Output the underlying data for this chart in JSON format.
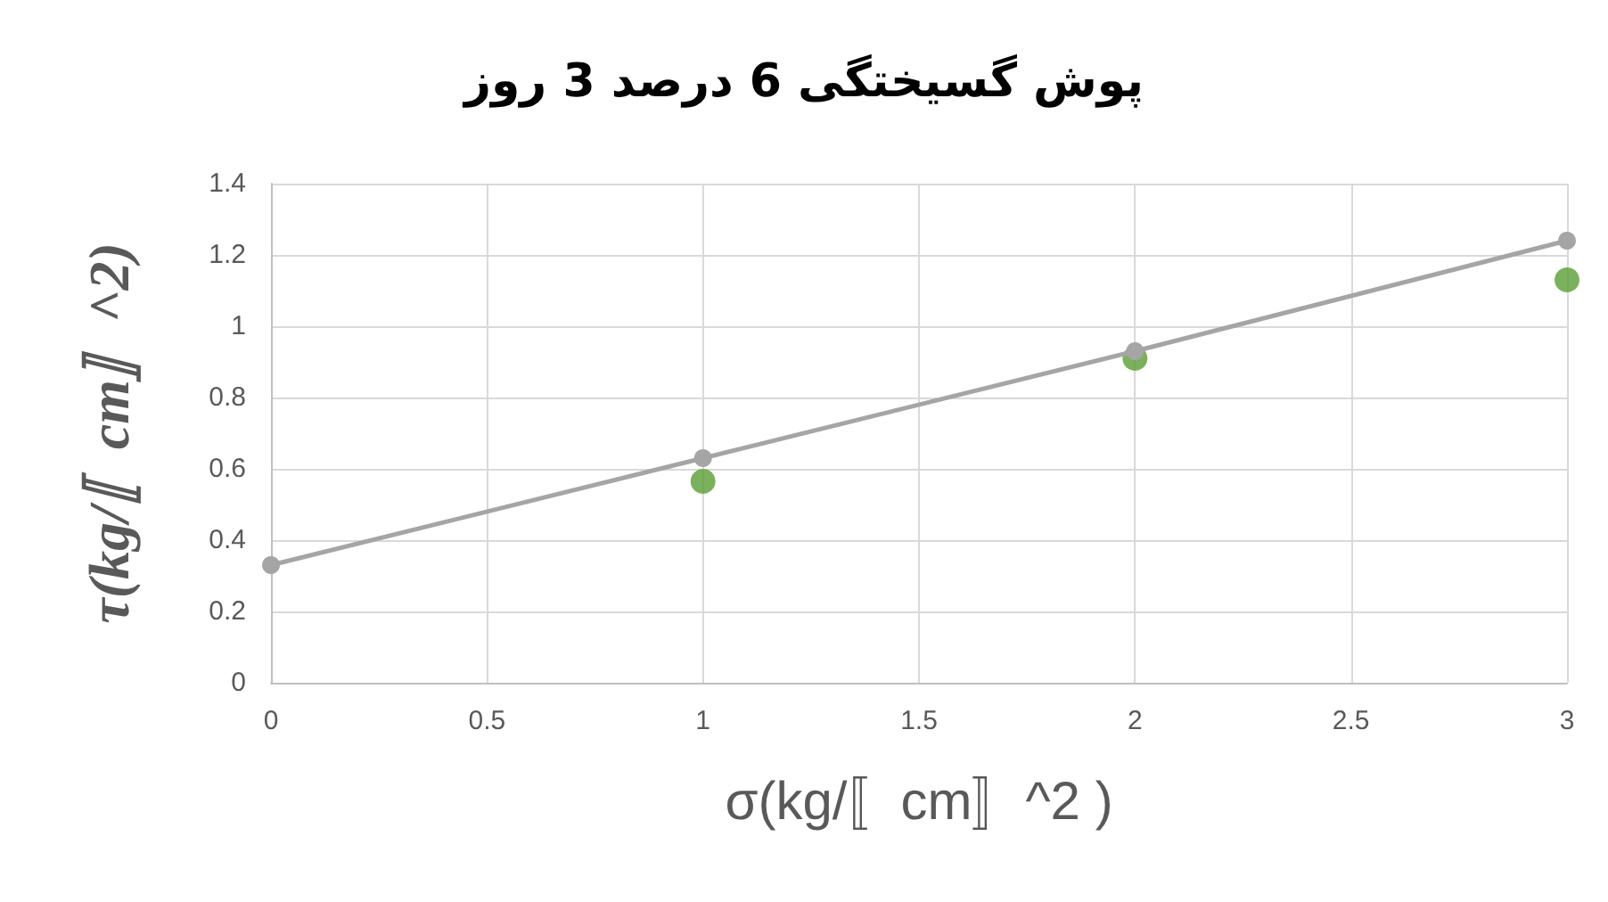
{
  "chart_data": {
    "type": "scatter",
    "title": "پوش گسیختگی 6 درصد 3 روز",
    "xlabel": "σ(kg/〚cm〛^2 )",
    "ylabel": "τ(kg/〚cm〛^2)",
    "series": [
      {
        "type": "line",
        "color": "#a5a5a5",
        "x": [
          0,
          1,
          2,
          3
        ],
        "values": [
          0.33,
          0.63,
          0.93,
          1.24
        ]
      },
      {
        "color": "#5a9e33",
        "x": [
          1,
          2,
          3
        ],
        "values": [
          0.565,
          0.91,
          1.13
        ]
      }
    ],
    "xlim": [
      0,
      3
    ],
    "xticks": [
      0,
      0.5,
      1,
      1.5,
      2,
      2.5,
      3
    ],
    "ylim": [
      0,
      1.4
    ],
    "yticks": [
      0,
      0.2,
      0.4,
      0.6,
      0.8,
      1,
      1.2,
      1.4
    ],
    "grid": true,
    "marker": "circle"
  }
}
